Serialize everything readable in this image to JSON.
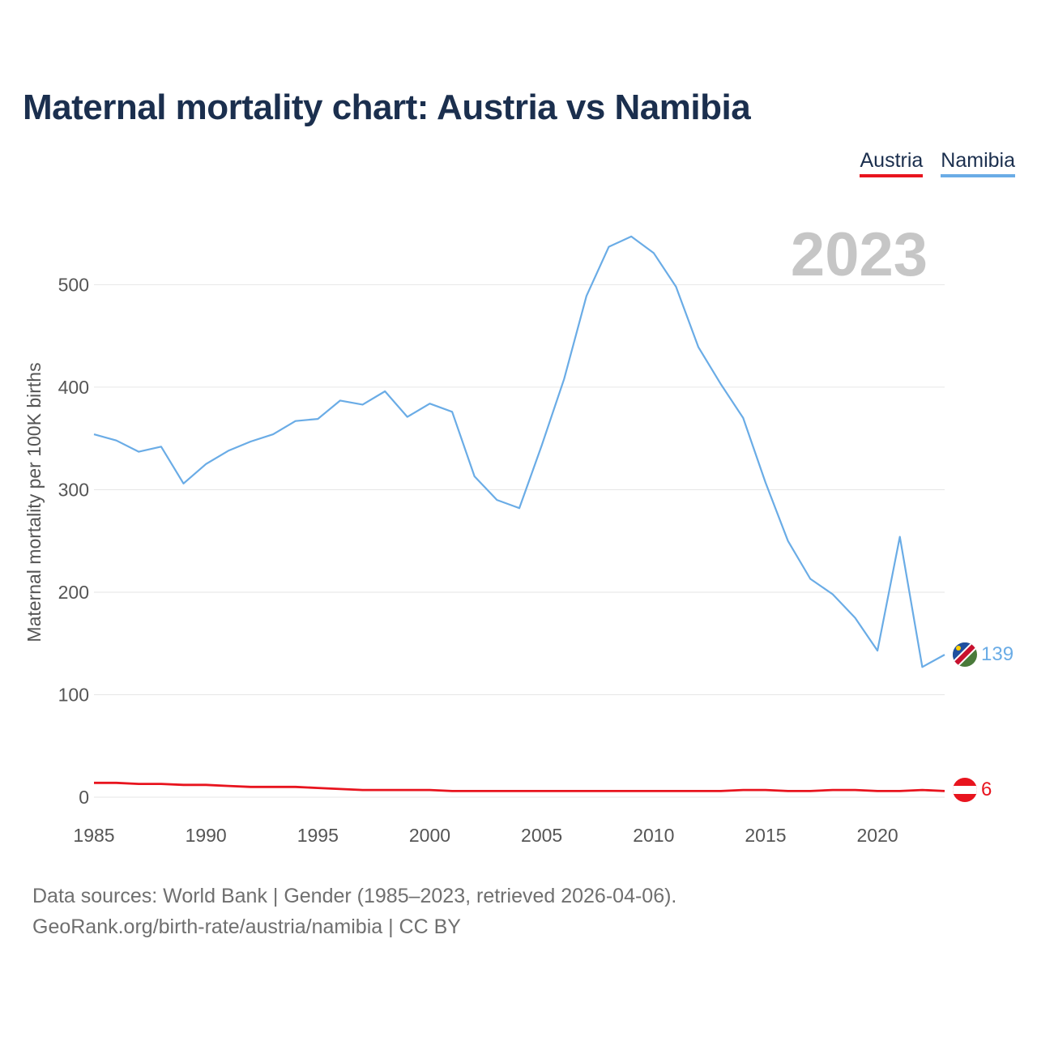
{
  "title": "Maternal mortality chart: Austria vs Namibia",
  "legend": {
    "austria": "Austria",
    "namibia": "Namibia"
  },
  "year_watermark": "2023",
  "end_labels": {
    "austria": "6",
    "namibia": "139"
  },
  "footer": {
    "line1": "Data sources: World Bank | Gender (1985–2023, retrieved 2026-04-06).",
    "line2": "GeoRank.org/birth-rate/austria/namibia | CC BY"
  },
  "colors": {
    "austria": "#e8141e",
    "namibia": "#6aace6",
    "title": "#1b2f4e"
  },
  "chart_data": {
    "type": "line",
    "title": "Maternal mortality chart: Austria vs Namibia",
    "xlabel": "",
    "ylabel": "Maternal mortality per 100K births",
    "xlim": [
      1985,
      2023
    ],
    "ylim": [
      0,
      550
    ],
    "xticks": [
      1985,
      1990,
      1995,
      2000,
      2005,
      2010,
      2015,
      2020
    ],
    "yticks": [
      0,
      100,
      200,
      300,
      400,
      500
    ],
    "x": [
      1985,
      1986,
      1987,
      1988,
      1989,
      1990,
      1991,
      1992,
      1993,
      1994,
      1995,
      1996,
      1997,
      1998,
      1999,
      2000,
      2001,
      2002,
      2003,
      2004,
      2005,
      2006,
      2007,
      2008,
      2009,
      2010,
      2011,
      2012,
      2013,
      2014,
      2015,
      2016,
      2017,
      2018,
      2019,
      2020,
      2021,
      2022,
      2023
    ],
    "series": [
      {
        "name": "Namibia",
        "color": "#6aace6",
        "values": [
          354,
          348,
          337,
          342,
          306,
          325,
          338,
          347,
          354,
          367,
          369,
          387,
          383,
          396,
          371,
          384,
          376,
          313,
          290,
          282,
          343,
          408,
          489,
          537,
          547,
          531,
          498,
          439,
          403,
          370,
          307,
          250,
          213,
          198,
          175,
          143,
          254,
          127,
          139
        ]
      },
      {
        "name": "Austria",
        "color": "#e8141e",
        "values": [
          14,
          14,
          13,
          13,
          12,
          12,
          11,
          10,
          10,
          10,
          9,
          8,
          7,
          7,
          7,
          7,
          6,
          6,
          6,
          6,
          6,
          6,
          6,
          6,
          6,
          6,
          6,
          6,
          6,
          7,
          7,
          6,
          6,
          7,
          7,
          6,
          6,
          7,
          6
        ]
      }
    ],
    "grid": true,
    "legend_position": "top-right"
  }
}
